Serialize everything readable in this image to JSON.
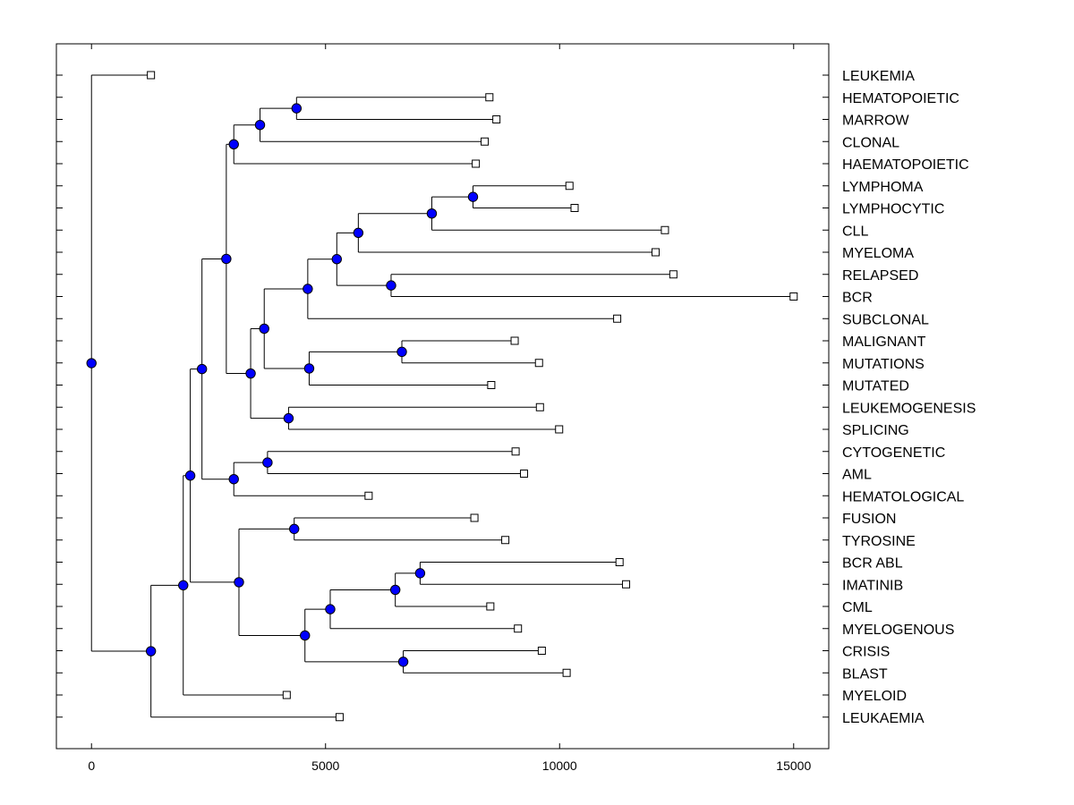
{
  "chart_data": {
    "type": "dendrogram",
    "title": "",
    "xlabel": "",
    "ylabel": "",
    "xlim": [
      -750,
      15750
    ],
    "x_ticks": [
      0,
      5000,
      10000,
      15000
    ],
    "x_tick_labels": [
      "0",
      "5000",
      "10000",
      "15000"
    ],
    "node_fill": "#0000ff",
    "leaves": [
      {
        "label": "LEUKEMIA",
        "x": 1270
      },
      {
        "label": "HEMATOPOIETIC",
        "x": 8500
      },
      {
        "label": "MARROW",
        "x": 8650
      },
      {
        "label": "CLONAL",
        "x": 8400
      },
      {
        "label": "HAEMATOPOIETIC",
        "x": 8210
      },
      {
        "label": "LYMPHOMA",
        "x": 10210
      },
      {
        "label": "LYMPHOCYTIC",
        "x": 10320
      },
      {
        "label": "CLL",
        "x": 12250
      },
      {
        "label": "MYELOMA",
        "x": 12050
      },
      {
        "label": "RELAPSED",
        "x": 12430
      },
      {
        "label": "BCR",
        "x": 15000
      },
      {
        "label": "SUBCLONAL",
        "x": 11230
      },
      {
        "label": "MALIGNANT",
        "x": 9040
      },
      {
        "label": "MUTATIONS",
        "x": 9560
      },
      {
        "label": "MUTATED",
        "x": 8540
      },
      {
        "label": "LEUKEMOGENESIS",
        "x": 9580
      },
      {
        "label": "SPLICING",
        "x": 9990
      },
      {
        "label": "CYTOGENETIC",
        "x": 9060
      },
      {
        "label": "AML",
        "x": 9240
      },
      {
        "label": "HEMATOLOGICAL",
        "x": 5920
      },
      {
        "label": "FUSION",
        "x": 8180
      },
      {
        "label": "TYROSINE",
        "x": 8840
      },
      {
        "label": "BCR ABL",
        "x": 11280
      },
      {
        "label": "IMATINIB",
        "x": 11420
      },
      {
        "label": "CML",
        "x": 8520
      },
      {
        "label": "MYELOGENOUS",
        "x": 9110
      },
      {
        "label": "CRISIS",
        "x": 9620
      },
      {
        "label": "BLAST",
        "x": 10150
      },
      {
        "label": "MYELOID",
        "x": 4170
      },
      {
        "label": "LEUKAEMIA",
        "x": 5300
      }
    ],
    "merges": [
      {
        "id": "m1",
        "x": 4380,
        "children": [
          "L1",
          "L2"
        ]
      },
      {
        "id": "m2",
        "x": 3600,
        "children": [
          "m1",
          "L3"
        ]
      },
      {
        "id": "m3",
        "x": 3040,
        "children": [
          "m2",
          "L4"
        ]
      },
      {
        "id": "m4",
        "x": 8150,
        "children": [
          "L5",
          "L6"
        ]
      },
      {
        "id": "m5",
        "x": 7270,
        "children": [
          "m4",
          "L7"
        ]
      },
      {
        "id": "m6",
        "x": 5700,
        "children": [
          "m5",
          "L8"
        ]
      },
      {
        "id": "m7",
        "x": 6400,
        "children": [
          "L9",
          "L10"
        ]
      },
      {
        "id": "m8",
        "x": 5240,
        "children": [
          "m6",
          "m7"
        ]
      },
      {
        "id": "m9",
        "x": 4620,
        "children": [
          "m8",
          "L11"
        ]
      },
      {
        "id": "m10",
        "x": 6630,
        "children": [
          "L12",
          "L13"
        ]
      },
      {
        "id": "m11",
        "x": 4650,
        "children": [
          "m10",
          "L14"
        ]
      },
      {
        "id": "m12",
        "x": 3690,
        "children": [
          "m9",
          "m11"
        ]
      },
      {
        "id": "m13",
        "x": 4210,
        "children": [
          "L15",
          "L16"
        ]
      },
      {
        "id": "m14",
        "x": 3400,
        "children": [
          "m12",
          "m13"
        ]
      },
      {
        "id": "m15",
        "x": 2880,
        "children": [
          "m3",
          "m14"
        ]
      },
      {
        "id": "m16",
        "x": 3760,
        "children": [
          "L17",
          "L18"
        ]
      },
      {
        "id": "m17",
        "x": 3040,
        "children": [
          "m16",
          "L19"
        ]
      },
      {
        "id": "m18",
        "x": 2360,
        "children": [
          "m15",
          "m17"
        ]
      },
      {
        "id": "m19",
        "x": 4330,
        "children": [
          "L20",
          "L21"
        ]
      },
      {
        "id": "m20",
        "x": 7020,
        "children": [
          "L22",
          "L23"
        ]
      },
      {
        "id": "m21",
        "x": 6490,
        "children": [
          "m20",
          "L24"
        ]
      },
      {
        "id": "m22",
        "x": 5100,
        "children": [
          "m21",
          "L25"
        ]
      },
      {
        "id": "m23",
        "x": 6660,
        "children": [
          "L26",
          "L27"
        ]
      },
      {
        "id": "m24",
        "x": 4560,
        "children": [
          "m22",
          "m23"
        ]
      },
      {
        "id": "m25",
        "x": 3150,
        "children": [
          "m19",
          "m24"
        ]
      },
      {
        "id": "m26",
        "x": 2110,
        "children": [
          "m18",
          "m25"
        ]
      },
      {
        "id": "m27",
        "x": 1960,
        "children": [
          "m26",
          "L28"
        ]
      },
      {
        "id": "m28",
        "x": 1270,
        "children": [
          "m27",
          "L29"
        ]
      },
      {
        "id": "m29",
        "x": 0,
        "children": [
          "L0",
          "m28"
        ]
      }
    ]
  }
}
